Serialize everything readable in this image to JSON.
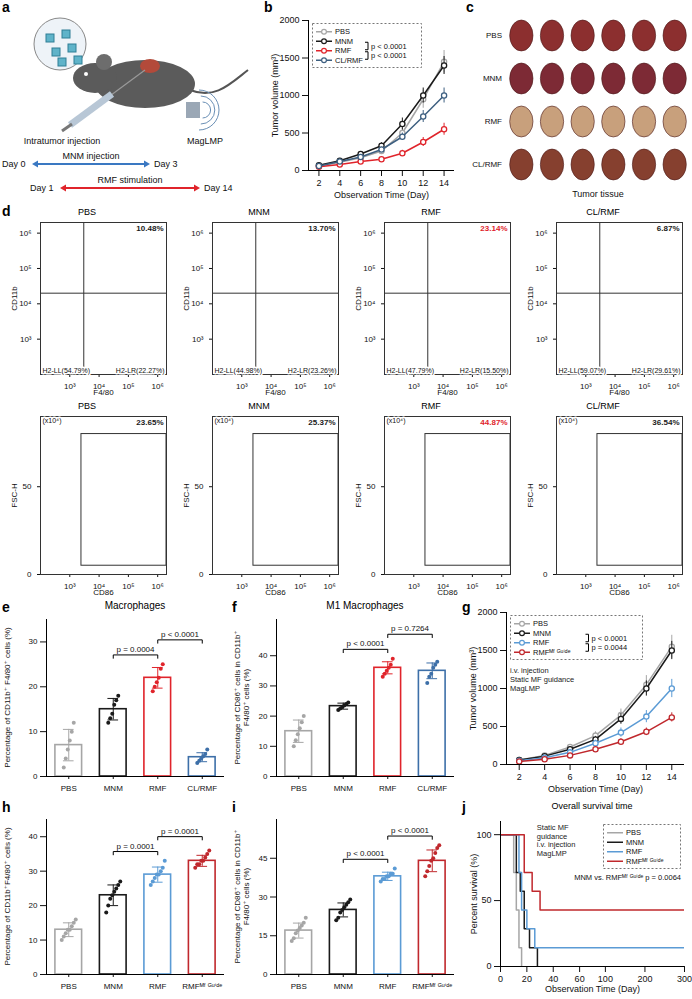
{
  "chart_data": [
    {
      "type": "diagram",
      "panel": "a",
      "labels": [
        "Intratumor injection",
        "MagLMP"
      ],
      "timeline": [
        {
          "start": "Day 0",
          "label": "MNM injection",
          "end": "Day 3",
          "color": "#3a78c2"
        },
        {
          "start": "Day 1",
          "label": "RMF stimulation",
          "end": "Day 14",
          "color": "#e0242b"
        }
      ]
    },
    {
      "type": "line",
      "panel": "b",
      "x_label": "Observation Time (Day)",
      "y_label": "Tumor volume (mm³)",
      "x": [
        2,
        4,
        6,
        8,
        10,
        12,
        14
      ],
      "xlim": [
        1,
        15
      ],
      "xticks": [
        2,
        4,
        6,
        8,
        10,
        12,
        14
      ],
      "ylim": [
        0,
        2000
      ],
      "yticks": [
        0,
        500,
        1000,
        1500,
        2000
      ],
      "grid": false,
      "legend": "top-left",
      "marker": "circle",
      "series": [
        {
          "name": "PBS",
          "color": "#a6a6a6",
          "values": [
            60,
            110,
            170,
            260,
            500,
            950,
            1450
          ],
          "errors": [
            10,
            20,
            30,
            40,
            60,
            120,
            150
          ]
        },
        {
          "name": "MNM",
          "color": "#1a1a1a",
          "values": [
            70,
            130,
            220,
            330,
            620,
            1000,
            1400
          ],
          "errors": [
            10,
            20,
            30,
            40,
            80,
            100,
            120
          ]
        },
        {
          "name": "RMF",
          "color": "#e0242b",
          "values": [
            50,
            80,
            120,
            150,
            230,
            380,
            550
          ],
          "errors": [
            10,
            10,
            20,
            20,
            40,
            60,
            80
          ]
        },
        {
          "name": "CL/RMF",
          "color": "#3d5f80",
          "values": [
            60,
            120,
            180,
            280,
            450,
            720,
            1000
          ],
          "errors": [
            10,
            15,
            25,
            30,
            50,
            80,
            100
          ]
        }
      ],
      "comparisons": [
        {
          "groups": [
            "MNM",
            "RMF"
          ],
          "label": "p < 0.0001"
        },
        {
          "groups": [
            "RMF",
            "CL/RMF"
          ],
          "label": "p < 0.0001"
        }
      ]
    },
    {
      "type": "photo_grid",
      "panel": "c",
      "rows": [
        "PBS",
        "MNM",
        "RMF",
        "CL/RMF"
      ],
      "samples_per_row": 6,
      "caption": "Tumor tissue"
    },
    {
      "type": "flow",
      "panel": "d",
      "rows": [
        {
          "x_label": "F4/80",
          "y_label": "CD11b",
          "log": true,
          "xlim": [
            100,
            2000000
          ],
          "ylim": [
            100,
            2000000
          ],
          "xticks": [
            {
              "value": 1000,
              "label": "10³"
            },
            {
              "value": 10000,
              "label": "10⁴"
            },
            {
              "value": 100000,
              "label": "10⁵"
            },
            {
              "value": 1000000,
              "label": "10⁶"
            }
          ],
          "yticks": [
            {
              "value": 1000,
              "label": "10³"
            },
            {
              "value": 10000,
              "label": "10⁴"
            },
            {
              "value": 100000,
              "label": "10⁵"
            },
            {
              "value": 1000000,
              "label": "10⁶"
            }
          ],
          "quadrant": [
            3000,
            20000
          ],
          "plots": [
            {
              "title": "PBS",
              "gate_label": "10.48%",
              "color": "#1a1a1a",
              "quadrant_labels": [
                "H2-LL(54.79%)",
                "H2-LR(22.27%)"
              ]
            },
            {
              "title": "MNM",
              "gate_label": "13.70%",
              "color": "#1a1a1a",
              "quadrant_labels": [
                "H2-LL(44.98%)",
                "H2-LR(23.26%)"
              ]
            },
            {
              "title": "RMF",
              "gate_label": "23.14%",
              "color": "#e0242b",
              "quadrant_labels": [
                "H2-LL(47.79%)",
                "H2-LR(15.50%)"
              ]
            },
            {
              "title": "CL/RMF",
              "gate_label": "6.87%",
              "color": "#1a1a1a",
              "quadrant_labels": [
                "H2-LL(59.07%)",
                "H2-LR(29.61%)"
              ]
            }
          ]
        },
        {
          "x_label": "CD86",
          "y_label": "FSC-H",
          "y_unit": "(x10⁴)",
          "log": "x",
          "xlim": [
            100,
            2000000
          ],
          "ylim": [
            0,
            90
          ],
          "xticks": [
            {
              "value": 1000,
              "label": "10³"
            },
            {
              "value": 10000,
              "label": "10⁴"
            },
            {
              "value": 100000,
              "label": "10⁵"
            },
            {
              "value": 1000000,
              "label": "10⁶"
            }
          ],
          "yticks": [
            0,
            50
          ],
          "gate": {
            "x": [
              2500,
              2000000
            ],
            "y": [
              5,
              80
            ]
          },
          "plots": [
            {
              "title": "PBS",
              "gate_label": "23.65%",
              "color": "#1a1a1a"
            },
            {
              "title": "MNM",
              "gate_label": "25.37%",
              "color": "#1a1a1a"
            },
            {
              "title": "RMF",
              "gate_label": "44.87%",
              "color": "#e0242b"
            },
            {
              "title": "CL/RMF",
              "gate_label": "36.54%",
              "color": "#1a1a1a"
            }
          ]
        }
      ]
    },
    {
      "type": "bar",
      "panel": "e",
      "title": "Macrophages",
      "y_label": "Percentage of CD11b⁺ F4/80⁺ cells (%)",
      "categories": [
        "PBS",
        "MNM",
        "RMF",
        "CL/RMF"
      ],
      "values": [
        7,
        15,
        22,
        4.3
      ],
      "errors": [
        3.5,
        2.4,
        2.3,
        1
      ],
      "points": [
        [
          2,
          4,
          6,
          8,
          10,
          12
        ],
        [
          12,
          13,
          14,
          16,
          17,
          18
        ],
        [
          19,
          20,
          21,
          22,
          24,
          25
        ],
        [
          3,
          3.5,
          4,
          4.5,
          5,
          6
        ]
      ],
      "colors": [
        "#a6a6a6",
        "#1a1a1a",
        "#e0242b",
        "#3d6fa8"
      ],
      "ylim": [
        0,
        35
      ],
      "yticks": [
        0,
        10,
        20,
        30
      ],
      "grid": false,
      "comparisons": [
        {
          "groups": [
            "MNM",
            "RMF"
          ],
          "label": "p = 0.0004"
        },
        {
          "groups": [
            "RMF",
            "CL/RMF"
          ],
          "label": "p < 0.0001"
        }
      ]
    },
    {
      "type": "bar",
      "panel": "f",
      "title": "M1 Macrophages",
      "y_label": "Percentage of CD86⁺ cells in CD11b⁺ F4/80⁺ cells (%)",
      "categories": [
        "PBS",
        "MNM",
        "RMF",
        "CL/RMF"
      ],
      "values": [
        15,
        23.3,
        36,
        35
      ],
      "errors": [
        3.7,
        1,
        2,
        2.6
      ],
      "points": [
        [
          10,
          12,
          14,
          16,
          18,
          20
        ],
        [
          22,
          22.5,
          23,
          23.5,
          24,
          24.5
        ],
        [
          33,
          34,
          35,
          36,
          37,
          39
        ],
        [
          31,
          33,
          34,
          36,
          37,
          38
        ]
      ],
      "colors": [
        "#a6a6a6",
        "#1a1a1a",
        "#e0242b",
        "#3d6fa8"
      ],
      "ylim": [
        0,
        52
      ],
      "yticks": [
        0,
        10,
        20,
        30,
        40
      ],
      "grid": false,
      "comparisons": [
        {
          "groups": [
            "MNM",
            "RMF"
          ],
          "label": "p < 0.0001"
        },
        {
          "groups": [
            "RMF",
            "CL/RMF"
          ],
          "label": "p = 0.7264"
        }
      ]
    },
    {
      "type": "line",
      "panel": "g",
      "x_label": "Observation Time (Day)",
      "y_label": "Tumor volume (mm³)",
      "x": [
        2,
        4,
        6,
        8,
        10,
        12,
        14
      ],
      "xlim": [
        1,
        15
      ],
      "xticks": [
        2,
        4,
        6,
        8,
        10,
        12,
        14
      ],
      "ylim": [
        0,
        2000
      ],
      "yticks": [
        0,
        500,
        1000,
        1500,
        2000
      ],
      "grid": false,
      "legend": "top-left",
      "marker": "circle",
      "series": [
        {
          "name": "PBS",
          "color": "#a6a6a6",
          "values": [
            60,
            120,
            230,
            380,
            650,
            1050,
            1550
          ],
          "errors": [
            10,
            20,
            30,
            50,
            80,
            120,
            150
          ]
        },
        {
          "name": "MNM",
          "color": "#1a1a1a",
          "values": [
            60,
            110,
            200,
            330,
            600,
            1000,
            1500
          ],
          "errors": [
            10,
            20,
            30,
            40,
            70,
            100,
            120
          ]
        },
        {
          "name": "RMF",
          "color": "#5b9bd5",
          "values": [
            50,
            90,
            160,
            280,
            420,
            630,
            1000
          ],
          "errors": [
            10,
            15,
            20,
            40,
            60,
            80,
            120
          ]
        },
        {
          "name": "RMFᴹᶠ ᴳᵘⁱᵈᵉ",
          "color": "#c0282d",
          "values": [
            40,
            70,
            120,
            200,
            300,
            430,
            620
          ],
          "errors": [
            5,
            10,
            15,
            30,
            40,
            50,
            60
          ]
        }
      ],
      "comparisons": [
        {
          "groups": [
            "MNM",
            "RMF"
          ],
          "label": "p < 0.0001"
        },
        {
          "groups": [
            "RMF",
            "RMFᴹᶠ ᴳᵘⁱᵈᵉ"
          ],
          "label": "p = 0.0044"
        }
      ],
      "annotations": [
        "i.v. injection",
        "Static MF guidance",
        "MagLMP"
      ]
    },
    {
      "type": "bar",
      "panel": "h",
      "y_label": "Percentage of CD11b⁺F4/80⁺ cells (%)",
      "categories": [
        "PBS",
        "MNM",
        "RMF",
        "RMFᴹᶠ ᴳᵘⁱᵈᵉ"
      ],
      "values": [
        13,
        23,
        29,
        33
      ],
      "errors": [
        2,
        3,
        2.2,
        1.6
      ],
      "points": [
        [
          10,
          11,
          12,
          13,
          13,
          14,
          15,
          16
        ],
        [
          18,
          20,
          22,
          23,
          24,
          25,
          26,
          27
        ],
        [
          26,
          27,
          28,
          29,
          29,
          30,
          31,
          33
        ],
        [
          31,
          32,
          32,
          33,
          33,
          34,
          35,
          36
        ]
      ],
      "colors": [
        "#a6a6a6",
        "#1a1a1a",
        "#5b9bd5",
        "#c0282d"
      ],
      "ylim": [
        0,
        45
      ],
      "yticks": [
        0,
        10,
        20,
        30,
        40
      ],
      "grid": false,
      "comparisons": [
        {
          "groups": [
            "MNM",
            "RMF"
          ],
          "label": "p = 0.0001"
        },
        {
          "groups": [
            "RMF",
            "RMFᴹᶠ ᴳᵘⁱᵈᵉ"
          ],
          "label": "p = 0.0001"
        }
      ]
    },
    {
      "type": "bar",
      "panel": "i",
      "y_label": "Percentage of CD86⁺ cells in CD11b⁺ F4/80⁺ cells (%)",
      "categories": [
        "PBS",
        "MNM",
        "RMF",
        "RMFᴹᶠ ᴳᵘⁱᵈᵉ"
      ],
      "values": [
        17,
        25,
        38,
        44
      ],
      "errors": [
        2.9,
        2.7,
        1.6,
        4.2
      ],
      "points": [
        [
          13,
          14,
          16,
          17,
          18,
          19,
          20,
          22
        ],
        [
          21,
          22,
          24,
          25,
          26,
          27,
          28,
          29
        ],
        [
          36,
          37,
          37,
          38,
          38,
          39,
          39,
          41
        ],
        [
          38,
          40,
          42,
          44,
          45,
          47,
          49,
          50
        ]
      ],
      "colors": [
        "#a6a6a6",
        "#1a1a1a",
        "#5b9bd5",
        "#c0282d"
      ],
      "ylim": [
        0,
        60
      ],
      "yticks": [
        0,
        15,
        30,
        45
      ],
      "grid": false,
      "comparisons": [
        {
          "groups": [
            "MNM",
            "RMF"
          ],
          "label": "p < 0.0001"
        },
        {
          "groups": [
            "RMF",
            "RMFᴹᶠ ᴳᵘⁱᵈᵉ"
          ],
          "label": "p < 0.0001"
        }
      ]
    },
    {
      "type": "survival",
      "panel": "j",
      "title": "Overall survival time",
      "x_label": "Observation Time (Day)",
      "y_label": "Percent survival (%)",
      "xlim": [
        0,
        300
      ],
      "axis_break": [
        60,
        100
      ],
      "xticks": [
        0,
        20,
        40,
        60,
        100,
        200,
        300
      ],
      "ylim": [
        0,
        110
      ],
      "yticks": [
        0,
        50,
        100
      ],
      "grid": false,
      "legend": "top-right",
      "line_style": "step",
      "series": [
        {
          "name": "PBS",
          "color": "#a6a6a6",
          "x": [
            0,
            10,
            12,
            14,
            16
          ],
          "values": [
            100,
            71.4,
            42.9,
            14.3,
            0
          ]
        },
        {
          "name": "MNM",
          "color": "#1a1a1a",
          "x": [
            0,
            12,
            15,
            18,
            22,
            28
          ],
          "values": [
            100,
            71.4,
            57.1,
            28.6,
            14.3,
            0
          ]
        },
        {
          "name": "RMF",
          "color": "#5b9bd5",
          "x": [
            0,
            14,
            16,
            20,
            26,
            300
          ],
          "values": [
            100,
            71.4,
            42.9,
            28.6,
            14.3,
            14.3
          ]
        },
        {
          "name": "RMFᴹᶠ ᴳᵘⁱᵈᵉ",
          "color": "#c0282d",
          "x": [
            0,
            18,
            24,
            30,
            300
          ],
          "values": [
            100,
            71.4,
            57.1,
            42.9,
            42.9
          ]
        }
      ],
      "comparison": {
        "text": "MNM vs. RMFᴹᶠ ᴳᵘⁱᵈᵉ",
        "label": "p = 0.0064"
      },
      "annotations": [
        "Static MF guidance",
        "i.v. injection",
        "MagLMP"
      ]
    }
  ]
}
